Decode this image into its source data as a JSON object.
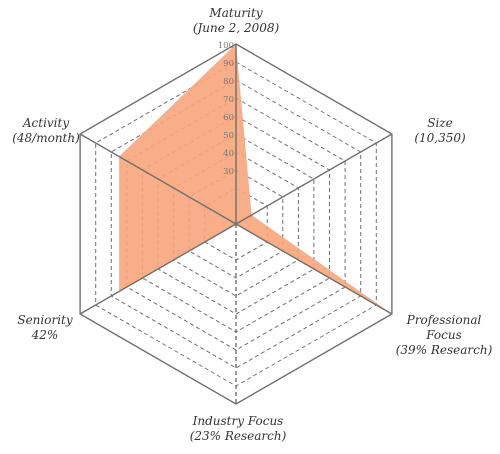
{
  "chart_data": {
    "type": "radar",
    "title": "",
    "axes": [
      {
        "key": "maturity",
        "lines": [
          "Maturity",
          "(June 2, 2008)"
        ],
        "value": 100
      },
      {
        "key": "size",
        "lines": [
          "Size",
          "(10,350)"
        ],
        "value": 10
      },
      {
        "key": "professional-focus",
        "lines": [
          "Professional",
          "Focus",
          "(39% Research)"
        ],
        "value": 100
      },
      {
        "key": "industry-focus",
        "lines": [
          "Industry Focus",
          "(23% Research)"
        ],
        "value": 0
      },
      {
        "key": "seniority",
        "lines": [
          "Seniority",
          "42%"
        ],
        "value": 75
      },
      {
        "key": "activity",
        "lines": [
          "Activity",
          "(48/month)"
        ],
        "value": 75
      }
    ],
    "scale": {
      "min": 0,
      "max": 100
    },
    "rings": [
      20,
      30,
      40,
      50,
      60,
      70,
      80,
      90,
      100
    ],
    "tick_labels": [
      "30",
      "40",
      "50",
      "60",
      "70",
      "80",
      "90",
      "100"
    ],
    "fill_color": "#f7a57c",
    "fill_opacity": 0.9,
    "grid_color": "#6f6f6f"
  }
}
